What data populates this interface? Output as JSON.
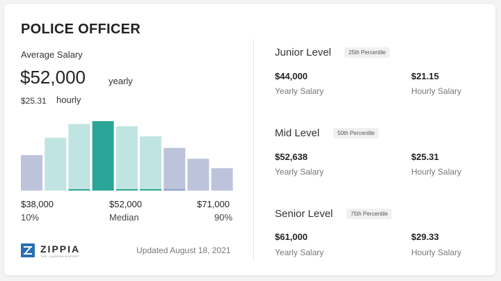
{
  "title": "POLICE OFFICER",
  "average_label": "Average Salary",
  "salary": "$52,000",
  "salary_unit": "yearly",
  "hourly": "$25.31",
  "hourly_unit": "hourly",
  "histogram": {
    "bars": [
      {
        "level": 0.49,
        "color": "#bcc3db",
        "accent": ""
      },
      {
        "level": 0.73,
        "color": "#bfe4e1",
        "accent": ""
      },
      {
        "level": 0.92,
        "color": "#bfe4e1",
        "accent": "#2ba597"
      },
      {
        "level": 0.96,
        "color": "#2ba597",
        "accent": "#2ba597"
      },
      {
        "level": 0.89,
        "color": "#bfe4e1",
        "accent": "#2ba597"
      },
      {
        "level": 0.75,
        "color": "#bfe4e1",
        "accent": "#2ba597"
      },
      {
        "level": 0.59,
        "color": "#bcc3db",
        "accent": "#8ea0c8"
      },
      {
        "level": 0.44,
        "color": "#bcc3db",
        "accent": ""
      },
      {
        "level": 0.31,
        "color": "#bcc3db",
        "accent": ""
      }
    ]
  },
  "axis": [
    {
      "value": "$38,000",
      "sub": "10%"
    },
    {
      "value": "$52,000",
      "sub": "Median"
    },
    {
      "value": "$71,000",
      "sub": "90%"
    }
  ],
  "logo": {
    "name": "ZIPPIA",
    "tagline": "THE CAREER EXPERT"
  },
  "updated": "Updated August 18, 2021",
  "levels": [
    {
      "name": "Junior Level",
      "percentile": "25th Percentile",
      "yearly": "$44,000",
      "yearly_label": "Yearly Salary",
      "hourly": "$21.15",
      "hourly_label": "Hourly Salary"
    },
    {
      "name": "Mid Level",
      "percentile": "50th Percentile",
      "yearly": "$52,638",
      "yearly_label": "Yearly Salary",
      "hourly": "$25.31",
      "hourly_label": "Hourly Salary"
    },
    {
      "name": "Senior Level",
      "percentile": "75th Percentile",
      "yearly": "$61,000",
      "yearly_label": "Yearly Salary",
      "hourly": "$29.33",
      "hourly_label": "Hourly Salary"
    }
  ],
  "colors": {
    "accent_teal": "#2ba597",
    "light_teal": "#bfe4e1",
    "lavender": "#bcc3db",
    "brand_blue": "#2a6fb5"
  }
}
